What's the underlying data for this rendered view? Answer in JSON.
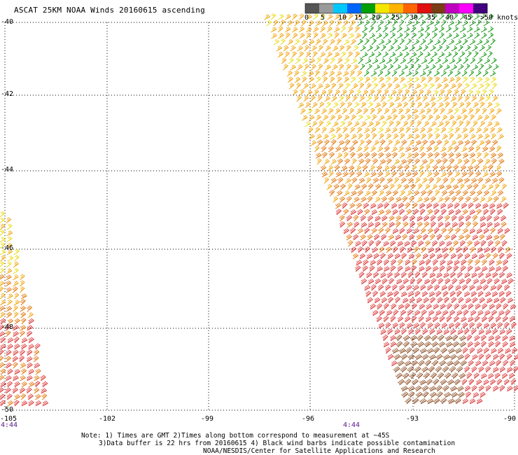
{
  "title": "ASCAT 25KM NOAA Winds 20160615 ascending",
  "legend": {
    "labels": [
      "0",
      "5",
      "10",
      "15",
      "20",
      "25",
      "30",
      "35",
      "40",
      "45",
      ">50 knots"
    ],
    "colors": [
      "#555555",
      "#9a9a9a",
      "#00c8ff",
      "#0064ff",
      "#00a000",
      "#f5e600",
      "#ffb400",
      "#ff6400",
      "#e01010",
      "#7a3c14",
      "#c000c0",
      "#ff00ff",
      "#400080"
    ]
  },
  "map": {
    "lat_labels": [
      "-40",
      "-42",
      "-44",
      "-46",
      "-48",
      "-50"
    ],
    "lon_labels": [
      "-105",
      "-102",
      "-99",
      "-96",
      "-93",
      "-90"
    ],
    "time_labels": [
      "4:44",
      "4:44"
    ]
  },
  "notes": {
    "line1": "Note: 1) Times are GMT 2)Times along bottom correspond to measurement at ~45S",
    "line2": "3)Data buffer is 22 hrs from 20160615 4) Black wind barbs indicate possible contamination",
    "line3": "NOAA/NESDIS/Center for Satellite Applications and Research"
  }
}
